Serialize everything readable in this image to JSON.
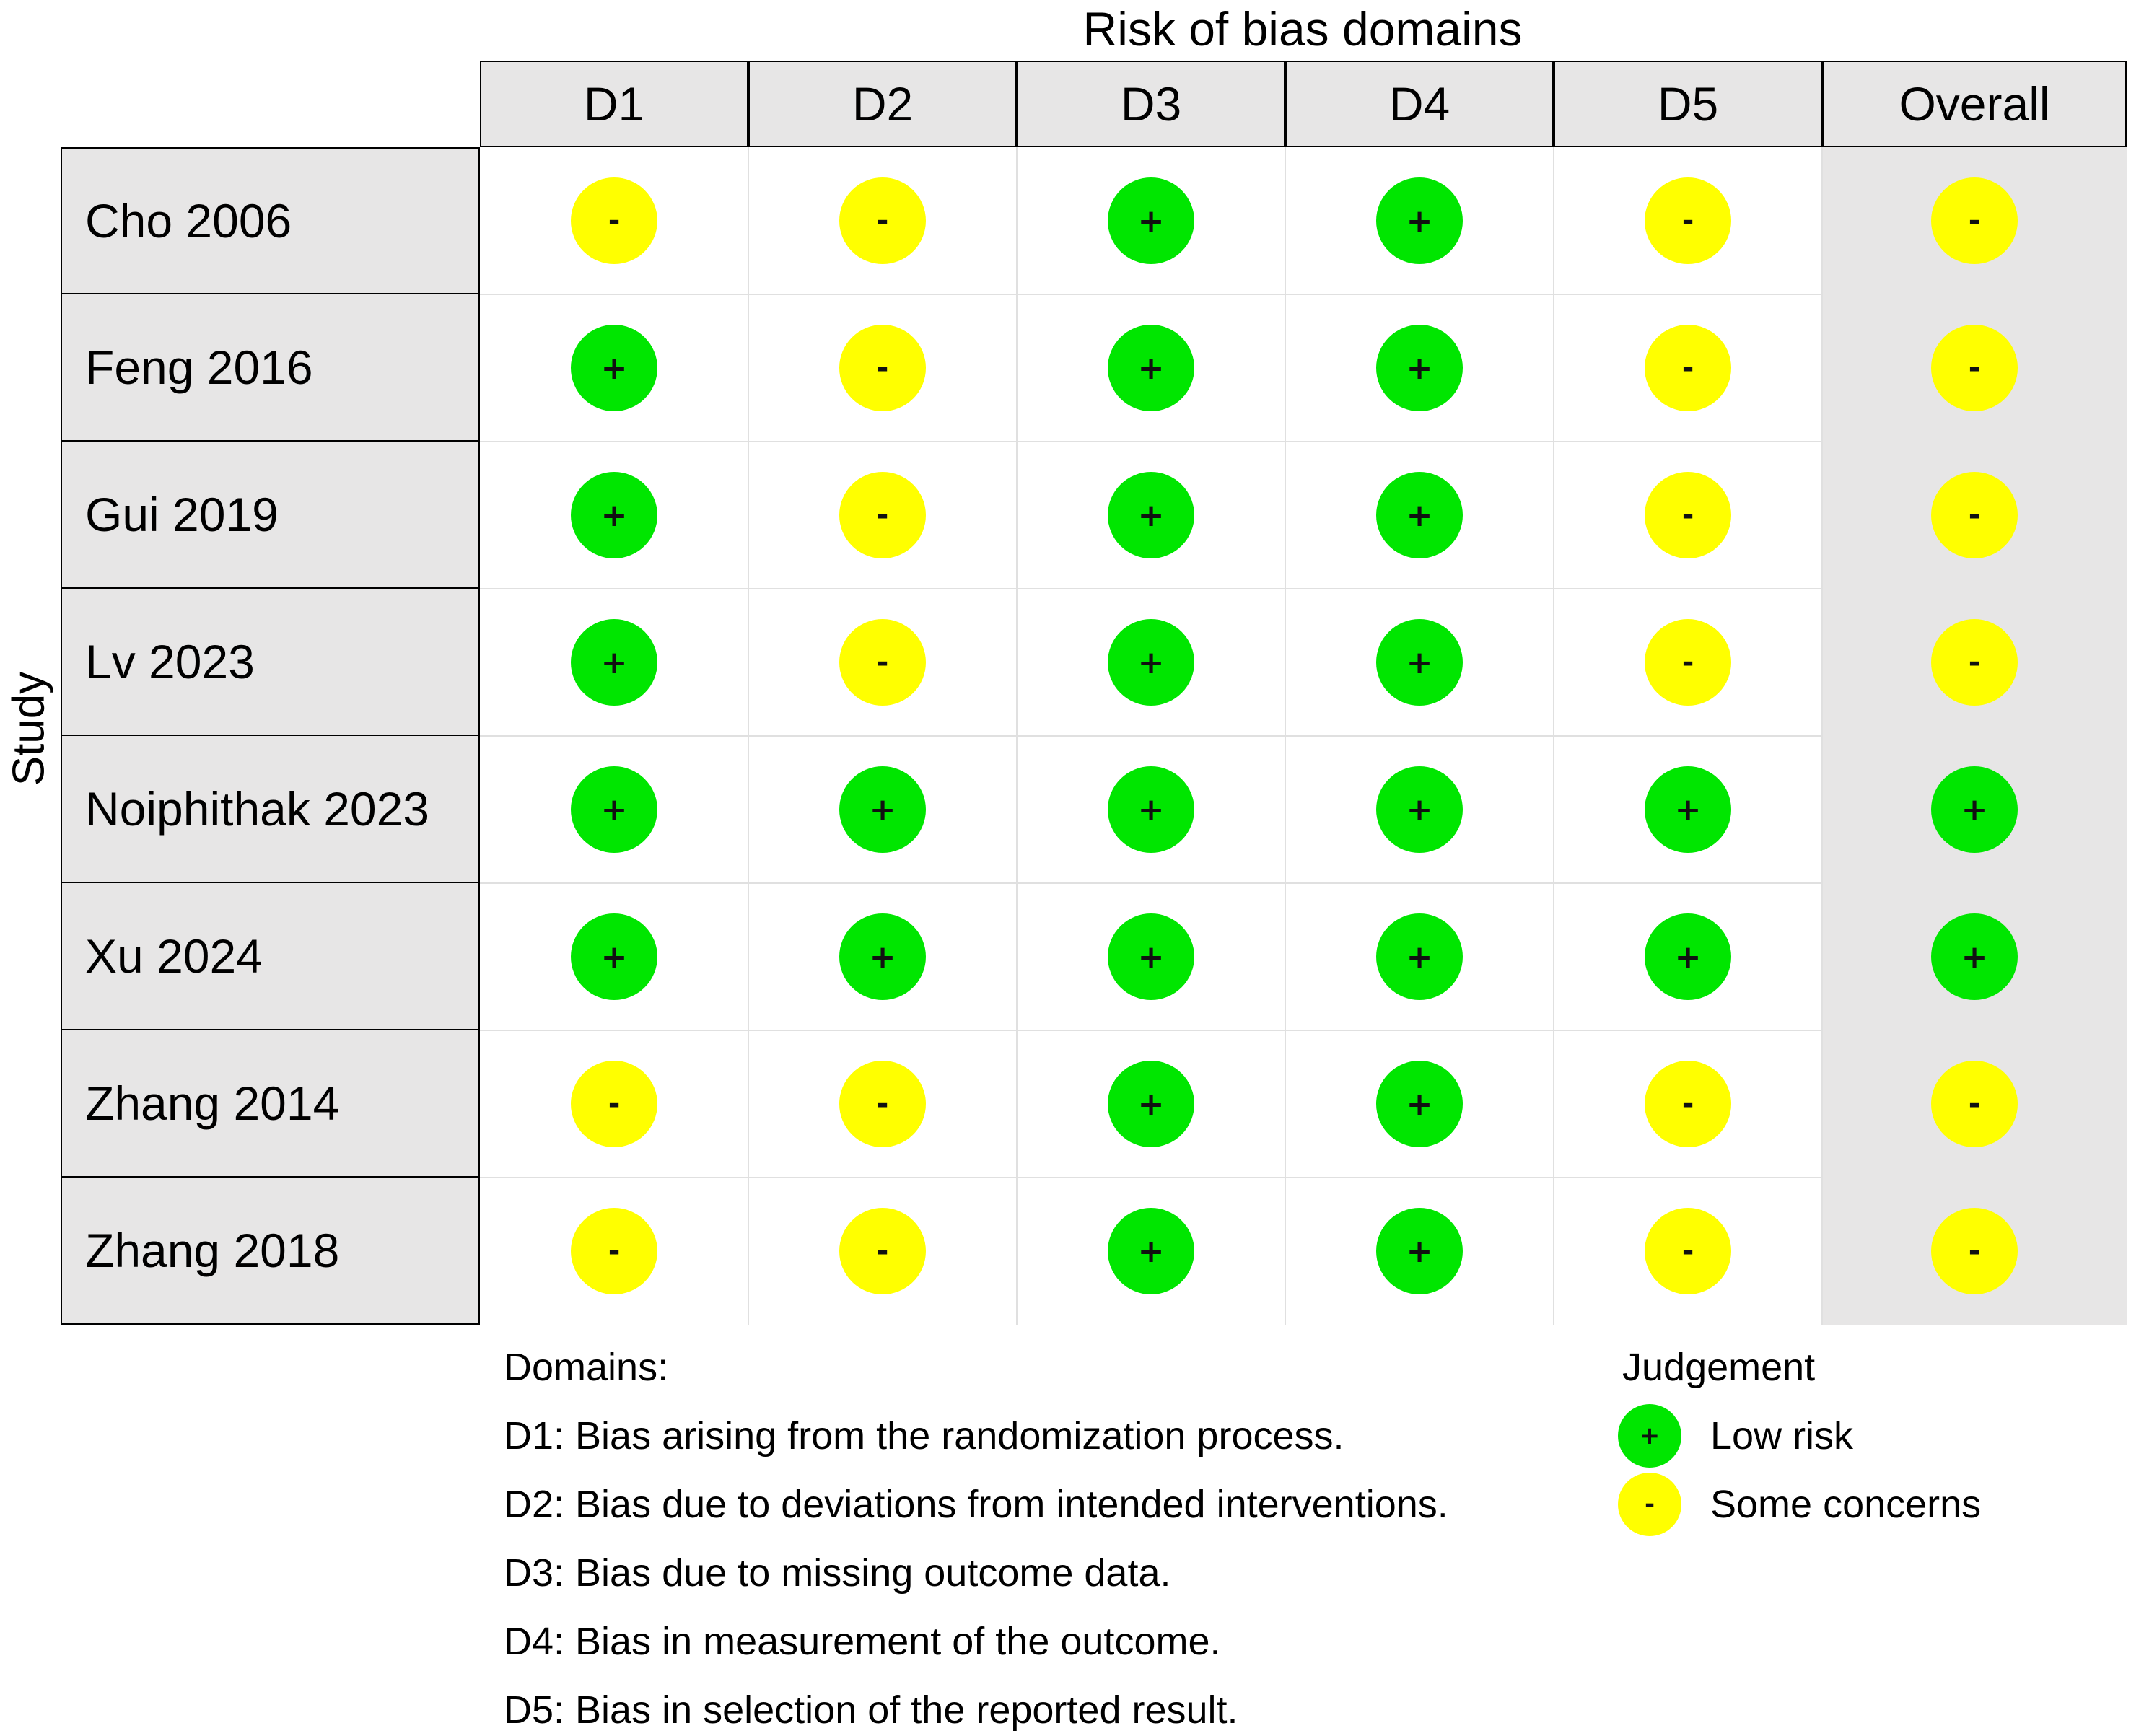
{
  "chart_data": {
    "type": "table",
    "title": "Risk of bias domains",
    "ylabel": "Study",
    "columns": [
      "D1",
      "D2",
      "D3",
      "D4",
      "D5",
      "Overall"
    ],
    "rows": [
      {
        "study": "Cho 2006",
        "judgements": [
          "-",
          "-",
          "+",
          "+",
          "-",
          "-"
        ]
      },
      {
        "study": "Feng 2016",
        "judgements": [
          "+",
          "-",
          "+",
          "+",
          "-",
          "-"
        ]
      },
      {
        "study": "Gui 2019",
        "judgements": [
          "+",
          "-",
          "+",
          "+",
          "-",
          "-"
        ]
      },
      {
        "study": "Lv 2023",
        "judgements": [
          "+",
          "-",
          "+",
          "+",
          "-",
          "-"
        ]
      },
      {
        "study": "Noiphithak 2023",
        "judgements": [
          "+",
          "+",
          "+",
          "+",
          "+",
          "+"
        ]
      },
      {
        "study": "Xu 2024",
        "judgements": [
          "+",
          "+",
          "+",
          "+",
          "+",
          "+"
        ]
      },
      {
        "study": "Zhang 2014",
        "judgements": [
          "-",
          "-",
          "+",
          "+",
          "-",
          "-"
        ]
      },
      {
        "study": "Zhang 2018",
        "judgements": [
          "-",
          "-",
          "+",
          "+",
          "-",
          "-"
        ]
      }
    ],
    "domains_legend": {
      "heading": "Domains:",
      "items": [
        "D1: Bias arising from the randomization process.",
        "D2: Bias due to deviations from intended interventions.",
        "D3: Bias due to missing outcome data.",
        "D4: Bias in measurement of the outcome.",
        "D5: Bias in selection of the reported result."
      ]
    },
    "judgement_legend": {
      "heading": "Judgement",
      "items": [
        {
          "symbol": "+",
          "label": "Low risk",
          "color": "#00e600"
        },
        {
          "symbol": "-",
          "label": "Some concerns",
          "color": "#ffff00"
        }
      ]
    },
    "colors": {
      "low": "#00e600",
      "some": "#ffff00",
      "header_bg": "#e7e6e6"
    }
  }
}
